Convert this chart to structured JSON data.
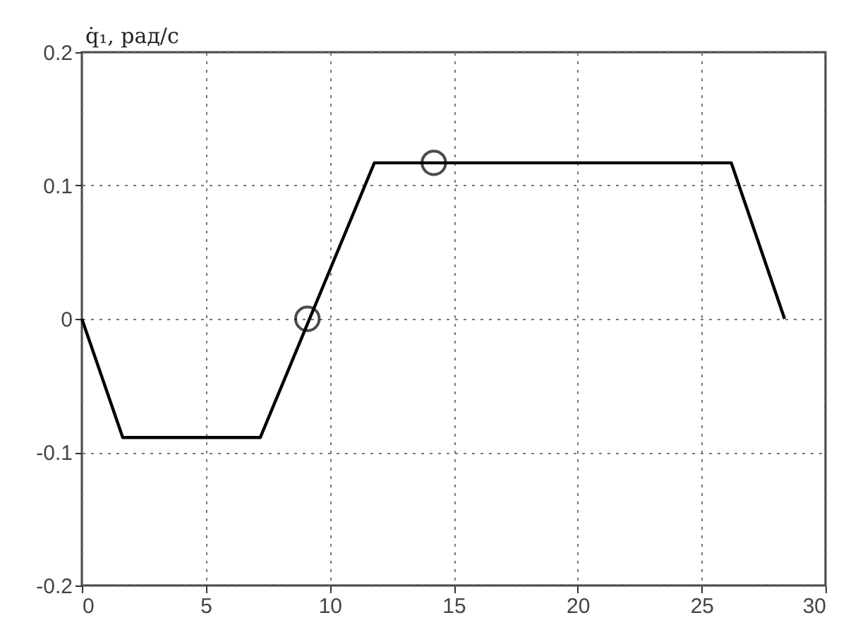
{
  "chart_data": {
    "type": "line",
    "ylabel": "q̇₁, рад/с",
    "xlim": [
      0,
      30
    ],
    "xticks": [
      0,
      5,
      10,
      15,
      20,
      25,
      30
    ],
    "ylim": [
      -0.2,
      0.2
    ],
    "yticks": [
      -0.2,
      -0.1,
      0,
      0.1,
      0.2
    ],
    "grid": true,
    "series": [
      {
        "color": "#000000",
        "x": [
          0,
          1.65,
          7.2,
          11.8,
          26.2,
          28.35
        ],
        "values": [
          0,
          -0.089,
          -0.089,
          0.117,
          0.117,
          0
        ],
        "marker": "none",
        "line_style": "solid"
      },
      {
        "type": "scatter",
        "color": "#000000",
        "x": [
          9.1,
          14.2
        ],
        "values": [
          0,
          0.117
        ],
        "marker": "circle"
      }
    ]
  }
}
